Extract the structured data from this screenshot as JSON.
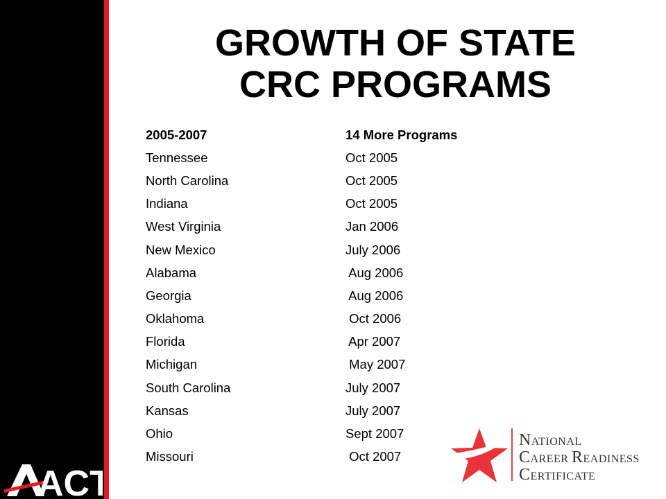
{
  "title": {
    "line1": "GROWTH OF STATE",
    "line2": "CRC PROGRAMS"
  },
  "header": {
    "period": "2005-2007",
    "summary": "14 More Programs"
  },
  "rows": [
    {
      "state": "Tennessee",
      "date": "Oct 2005"
    },
    {
      "state": "North Carolina",
      "date": "Oct 2005"
    },
    {
      "state": "Indiana",
      "date": "Oct 2005"
    },
    {
      "state": "West Virginia",
      "date": "Jan 2006"
    },
    {
      "state": "New Mexico",
      "date": "July 2006"
    },
    {
      "state": "Alabama",
      "date": " Aug 2006"
    },
    {
      "state": "Georgia",
      "date": " Aug 2006"
    },
    {
      "state": "Oklahoma",
      "date": " Oct 2006"
    },
    {
      "state": "Florida",
      "date": " Apr 2007"
    },
    {
      "state": "Michigan",
      "date": " May 2007"
    },
    {
      "state": "South Carolina",
      "date": "July 2007"
    },
    {
      "state": "Kansas",
      "date": "July 2007"
    },
    {
      "state": "Ohio",
      "date": "Sept 2007"
    },
    {
      "state": "Missouri",
      "date": " Oct 2007"
    }
  ],
  "logos": {
    "act_text": "ACT",
    "ncrc": {
      "line1_cap": "N",
      "line1_rest": "ATIONAL",
      "line2_cap1": "C",
      "line2_rest1": "AREER ",
      "line2_cap2": "R",
      "line2_rest2": "EADINESS",
      "line3_cap": "C",
      "line3_rest": "ERTIFICATE"
    }
  },
  "colors": {
    "sidebar": "#000000",
    "accent_red": "#e41b23",
    "ncrc_red": "#e8333a"
  }
}
